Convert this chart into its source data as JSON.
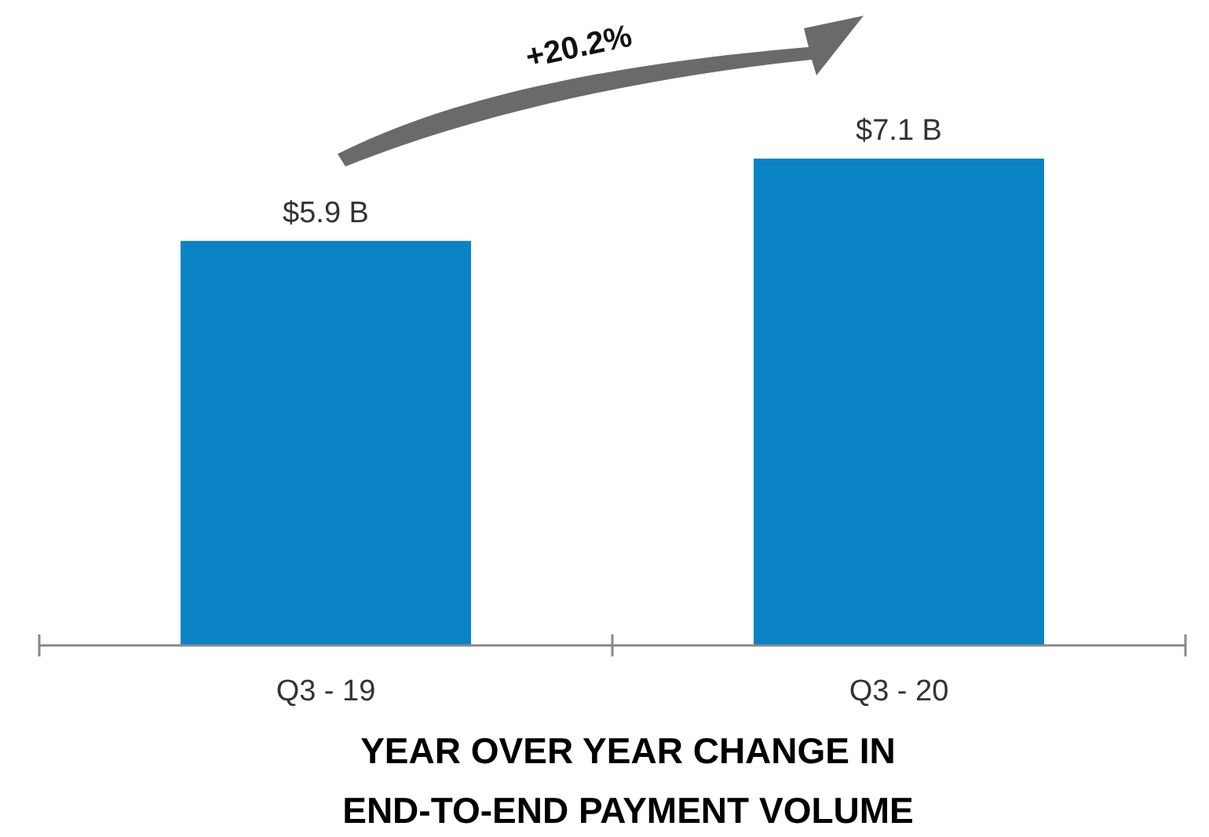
{
  "chart_data": {
    "type": "bar",
    "title": "YEAR OVER YEAR CHANGE IN END-TO-END PAYMENT VOLUME",
    "categories": [
      "Q3 - 19",
      "Q3 - 20"
    ],
    "values": [
      5.9,
      7.1
    ],
    "value_labels": [
      "$5.9 B",
      "$7.1 B"
    ],
    "color": "#0a83c5",
    "annotations": [
      "+20.2%"
    ]
  }
}
